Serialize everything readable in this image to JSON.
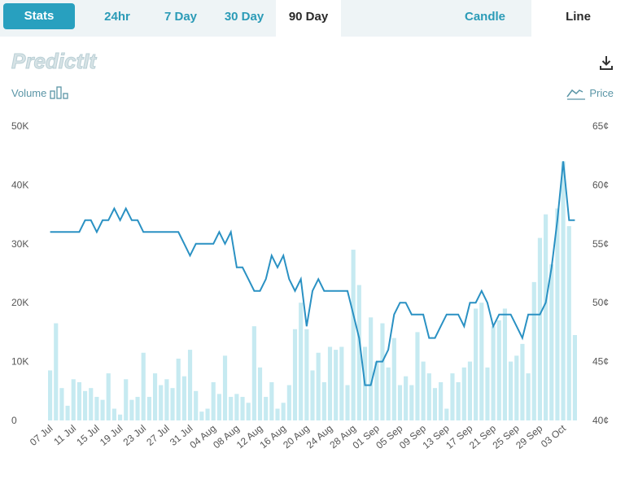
{
  "tabs": {
    "stats": "Stats",
    "h24": "24hr",
    "d7": "7 Day",
    "d30": "30 Day",
    "d90": "90 Day",
    "candle": "Candle",
    "line": "Line"
  },
  "logo_text": "PredictIt",
  "legend": {
    "volume": "Volume",
    "price": "Price"
  },
  "colors": {
    "accent": "#28a0bf",
    "line": "#2a91c3",
    "bar": "#c6eaf1",
    "tab_bg": "#eef4f6"
  },
  "icons": {
    "download": "download-icon",
    "volume": "bar-chart-icon",
    "price": "line-chart-icon"
  },
  "chart_data": {
    "type": "bar-line",
    "left_axis": {
      "ylim": [
        0,
        50000
      ],
      "ticks": [
        "0",
        "10K",
        "20K",
        "30K",
        "40K",
        "50K"
      ]
    },
    "right_axis": {
      "ylim": [
        40,
        65
      ],
      "ticks": [
        "40¢",
        "45¢",
        "50¢",
        "55¢",
        "60¢",
        "65¢"
      ]
    },
    "x_tick_labels": [
      "07 Jul",
      "11 Jul",
      "15 Jul",
      "19 Jul",
      "23 Jul",
      "27 Jul",
      "31 Jul",
      "04 Aug",
      "08 Aug",
      "12 Aug",
      "16 Aug",
      "20 Aug",
      "24 Aug",
      "28 Aug",
      "01 Sep",
      "05 Sep",
      "09 Sep",
      "13 Sep",
      "17 Sep",
      "21 Sep",
      "25 Sep",
      "29 Sep",
      "03 Oct"
    ],
    "series": [
      {
        "name": "Volume",
        "kind": "bar",
        "values": [
          8500,
          16500,
          5500,
          2500,
          7000,
          6500,
          5000,
          5500,
          4000,
          3500,
          8000,
          2000,
          1000,
          7000,
          3500,
          4000,
          11500,
          4000,
          8000,
          6000,
          7000,
          5500,
          10500,
          7500,
          12000,
          5000,
          1500,
          2000,
          6500,
          4500,
          11000,
          4000,
          4500,
          4000,
          3000,
          16000,
          9000,
          4000,
          6500,
          2000,
          3000,
          6000,
          15500,
          20000,
          15500,
          8500,
          11500,
          6500,
          12500,
          12000,
          12500,
          6000,
          29000,
          23000,
          12500,
          17500,
          10000,
          16500,
          9000,
          14000,
          6000,
          7500,
          6000,
          15000,
          10000,
          8000,
          5500,
          6500,
          2000,
          8000,
          6500,
          9000,
          10000,
          19000,
          20000,
          9000,
          16000,
          17000,
          19000,
          10000,
          11000,
          13000,
          8000,
          23500,
          31000,
          35000,
          26500,
          36000,
          44000,
          33000,
          14500
        ]
      },
      {
        "name": "Price",
        "kind": "line",
        "values": [
          56,
          56,
          56,
          56,
          56,
          56,
          57,
          57,
          56,
          57,
          57,
          58,
          57,
          58,
          57,
          57,
          56,
          56,
          56,
          56,
          56,
          56,
          56,
          55,
          54,
          55,
          55,
          55,
          55,
          56,
          55,
          56,
          53,
          53,
          52,
          51,
          51,
          52,
          54,
          53,
          54,
          52,
          51,
          52,
          48,
          51,
          52,
          51,
          51,
          51,
          51,
          51,
          49,
          47,
          43,
          43,
          45,
          45,
          46,
          49,
          50,
          50,
          49,
          49,
          49,
          47,
          47,
          48,
          49,
          49,
          49,
          48,
          50,
          50,
          51,
          50,
          48,
          49,
          49,
          49,
          48,
          47,
          49,
          49,
          49,
          50,
          53,
          57,
          62,
          57,
          57
        ]
      }
    ]
  }
}
